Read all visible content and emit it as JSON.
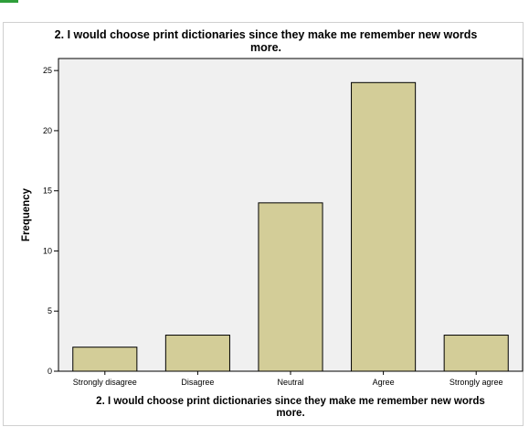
{
  "chart_data": {
    "type": "bar",
    "title_line1": "2. I would choose print dictionaries since they make me remember new words",
    "title_line2": "more.",
    "xlabel_line1": "2. I would choose print dictionaries since they make me remember new words",
    "xlabel_line2": "more.",
    "ylabel": "Frequency",
    "categories": [
      "Strongly disagree",
      "Disagree",
      "Neutral",
      "Agree",
      "Strongly agree"
    ],
    "values": [
      2,
      3,
      14,
      24,
      3
    ],
    "ylim": [
      0,
      26
    ],
    "yticks": [
      0,
      5,
      10,
      15,
      20,
      25
    ],
    "grid": false,
    "colors": {
      "bar_fill": "#d3cd98",
      "bar_stroke": "#000000",
      "plot_background": "#f0f0f0"
    }
  }
}
